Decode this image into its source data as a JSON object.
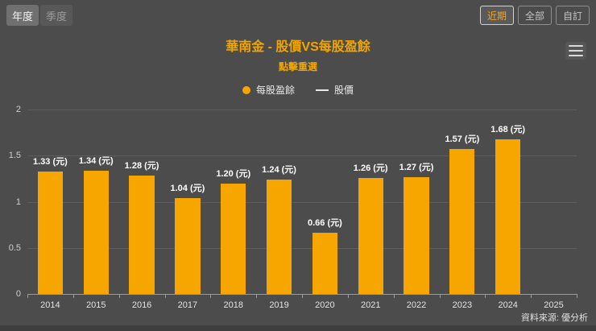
{
  "controls": {
    "period_tabs": [
      {
        "label": "年度",
        "selected": true
      },
      {
        "label": "季度",
        "selected": false
      }
    ],
    "range_buttons": [
      {
        "label": "近期",
        "selected": true
      },
      {
        "label": "全部",
        "selected": false
      },
      {
        "label": "自訂",
        "selected": false
      }
    ]
  },
  "header": {
    "title": "華南金 - 股價VS每股盈餘",
    "subtitle": "點擊重選"
  },
  "legend": [
    {
      "label": "每股盈餘",
      "marker": "circle",
      "color": "#f7a600"
    },
    {
      "label": "股價",
      "marker": "line",
      "color": "#e8e8e8"
    }
  ],
  "footer": {
    "source": "資料來源: 優分析"
  },
  "colors": {
    "background": "#4c4c4c",
    "accent": "#f0a500",
    "bar": "#f7a600",
    "axis_text": "#e3e3e3"
  },
  "chart_data": {
    "type": "bar",
    "title": "華南金 - 股價VS每股盈餘",
    "subtitle": "點擊重選",
    "categories": [
      "2014",
      "2015",
      "2016",
      "2017",
      "2018",
      "2019",
      "2020",
      "2021",
      "2022",
      "2023",
      "2024",
      "2025"
    ],
    "series": [
      {
        "name": "每股盈餘",
        "type": "bar",
        "color": "#f7a600",
        "unit": "元",
        "values": [
          1.33,
          1.34,
          1.28,
          1.04,
          1.2,
          1.24,
          0.66,
          1.26,
          1.27,
          1.57,
          1.68,
          null
        ],
        "labels": [
          "1.33 (元)",
          "1.34 (元)",
          "1.28 (元)",
          "1.04 (元)",
          "1.20 (元)",
          "1.24 (元)",
          "0.66 (元)",
          "1.26 (元)",
          "1.27 (元)",
          "1.57 (元)",
          "1.68 (元)",
          null
        ]
      },
      {
        "name": "股價",
        "type": "line",
        "color": "#e8e8e8",
        "visible": false,
        "values": []
      }
    ],
    "ylim": [
      0,
      2
    ],
    "yticks": [
      0,
      0.5,
      1,
      1.5,
      2
    ],
    "ytick_labels": [
      "0",
      "0.5",
      "1",
      "1.5",
      "2"
    ],
    "grid": true,
    "legend_position": "top",
    "xlabel": "",
    "ylabel": ""
  }
}
